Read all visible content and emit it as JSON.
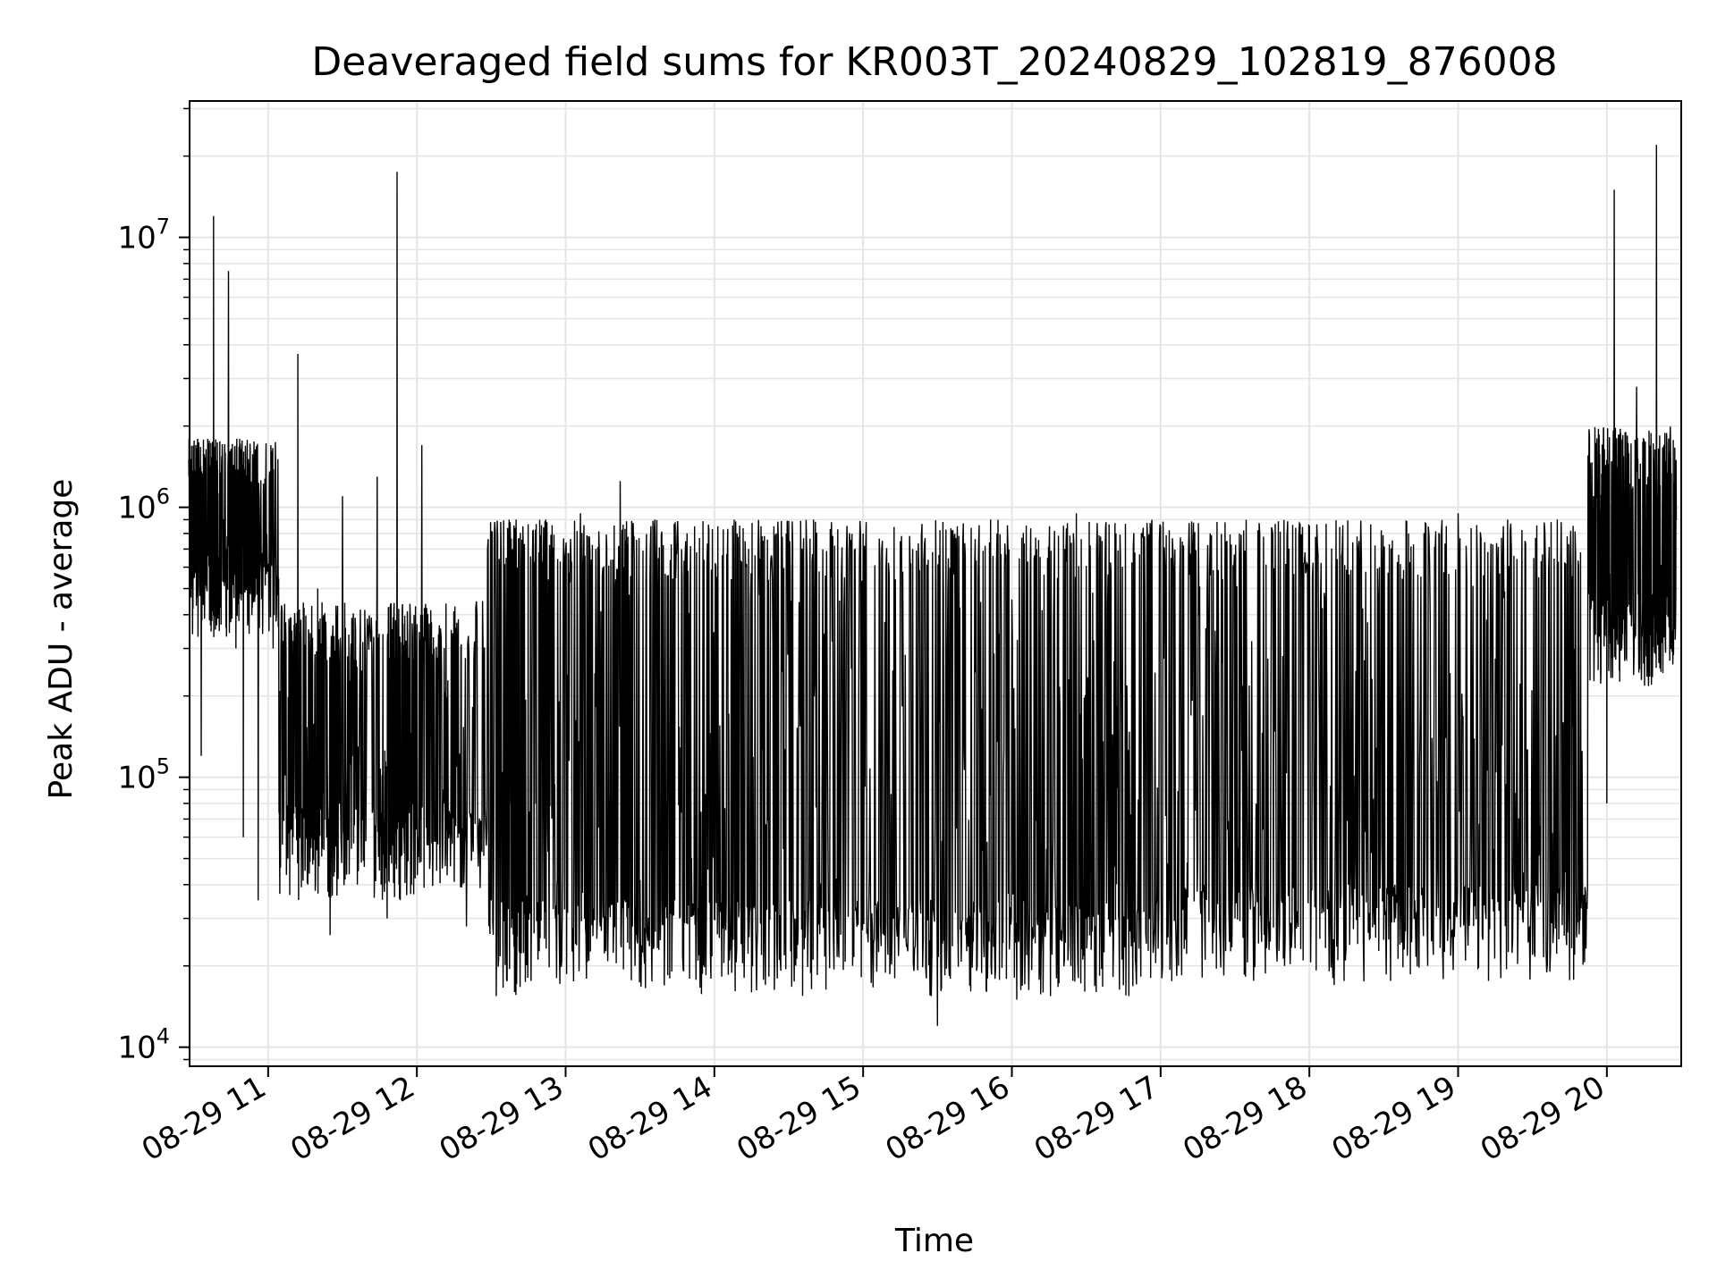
{
  "chart_data": {
    "type": "line",
    "title": "Deaveraged field sums for KR003T_20240829_102819_876008",
    "xlabel": "Time",
    "ylabel": "Peak ADU - average",
    "yscale": "log",
    "ylim": [
      8500,
      32000000
    ],
    "xlim": [
      "2024-08-29 10:28:19",
      "2024-08-29 20:30:00"
    ],
    "grid": true,
    "line_color": "#000000",
    "grid_color": "#e5e5e5",
    "x_ticks": [
      {
        "t": "2024-08-29 11:00",
        "label": "08-29 11"
      },
      {
        "t": "2024-08-29 12:00",
        "label": "08-29 12"
      },
      {
        "t": "2024-08-29 13:00",
        "label": "08-29 13"
      },
      {
        "t": "2024-08-29 14:00",
        "label": "08-29 14"
      },
      {
        "t": "2024-08-29 15:00",
        "label": "08-29 15"
      },
      {
        "t": "2024-08-29 16:00",
        "label": "08-29 16"
      },
      {
        "t": "2024-08-29 17:00",
        "label": "08-29 17"
      },
      {
        "t": "2024-08-29 18:00",
        "label": "08-29 18"
      },
      {
        "t": "2024-08-29 19:00",
        "label": "08-29 19"
      },
      {
        "t": "2024-08-29 20:00",
        "label": "08-29 20"
      }
    ],
    "y_ticks": [
      {
        "value": 10000,
        "base": "10",
        "exp": "4"
      },
      {
        "value": 100000,
        "base": "10",
        "exp": "5"
      },
      {
        "value": 1000000,
        "base": "10",
        "exp": "6"
      },
      {
        "value": 10000000,
        "base": "10",
        "exp": "7"
      }
    ],
    "series": [
      {
        "values": [
          [
            "2024-08-29 10:28",
            1500000
          ],
          [
            "2024-08-29 10:30",
            1000000
          ],
          [
            "2024-08-29 10:33",
            120000
          ],
          [
            "2024-08-29 10:36",
            1200000
          ],
          [
            "2024-08-29 10:38",
            12000000
          ],
          [
            "2024-08-29 10:40",
            400000
          ],
          [
            "2024-08-29 10:44",
            7500000
          ],
          [
            "2024-08-29 10:47",
            300000
          ],
          [
            "2024-08-29 10:50",
            60000
          ],
          [
            "2024-08-29 10:53",
            900000
          ],
          [
            "2024-08-29 10:56",
            35000
          ],
          [
            "2024-08-29 11:02",
            300000
          ],
          [
            "2024-08-29 11:08",
            50000
          ],
          [
            "2024-08-29 11:12",
            3700000
          ],
          [
            "2024-08-29 11:16",
            40000
          ],
          [
            "2024-08-29 11:20",
            500000
          ],
          [
            "2024-08-29 11:25",
            26000
          ],
          [
            "2024-08-29 11:30",
            1100000
          ],
          [
            "2024-08-29 11:36",
            40000
          ],
          [
            "2024-08-29 11:44",
            1300000
          ],
          [
            "2024-08-29 11:48",
            30000
          ],
          [
            "2024-08-29 11:52",
            17500000
          ],
          [
            "2024-08-29 11:56",
            50000
          ],
          [
            "2024-08-29 12:02",
            1700000
          ],
          [
            "2024-08-29 12:08",
            45000
          ],
          [
            "2024-08-29 12:14",
            300000
          ],
          [
            "2024-08-29 12:20",
            28000
          ],
          [
            "2024-08-29 12:30",
            35000
          ],
          [
            "2024-08-29 12:38",
            80000
          ],
          [
            "2024-08-29 12:40",
            900000
          ],
          [
            "2024-08-29 12:45",
            30000
          ],
          [
            "2024-08-29 12:52",
            900000
          ],
          [
            "2024-08-29 12:58",
            25000
          ],
          [
            "2024-08-29 13:06",
            950000
          ],
          [
            "2024-08-29 13:14",
            28000
          ],
          [
            "2024-08-29 13:22",
            1250000
          ],
          [
            "2024-08-29 13:28",
            20000
          ],
          [
            "2024-08-29 13:36",
            900000
          ],
          [
            "2024-08-29 13:44",
            35000
          ],
          [
            "2024-08-29 13:52",
            850000
          ],
          [
            "2024-08-29 14:00",
            30000
          ],
          [
            "2024-08-29 14:08",
            900000
          ],
          [
            "2024-08-29 14:16",
            33000
          ],
          [
            "2024-08-29 14:24",
            850000
          ],
          [
            "2024-08-29 14:32",
            30000
          ],
          [
            "2024-08-29 14:40",
            900000
          ],
          [
            "2024-08-29 14:50",
            25000
          ],
          [
            "2024-08-29 15:00",
            800000
          ],
          [
            "2024-08-29 15:10",
            22000
          ],
          [
            "2024-08-29 15:20",
            700000
          ],
          [
            "2024-08-29 15:30",
            12000
          ],
          [
            "2024-08-29 15:38",
            850000
          ],
          [
            "2024-08-29 15:46",
            20000
          ],
          [
            "2024-08-29 15:54",
            800000
          ],
          [
            "2024-08-29 16:02",
            15000
          ],
          [
            "2024-08-29 16:10",
            700000
          ],
          [
            "2024-08-29 16:18",
            18000
          ],
          [
            "2024-08-29 16:26",
            950000
          ],
          [
            "2024-08-29 16:34",
            16000
          ],
          [
            "2024-08-29 16:42",
            800000
          ],
          [
            "2024-08-29 16:50",
            20000
          ],
          [
            "2024-08-29 17:00",
            850000
          ],
          [
            "2024-08-29 17:10",
            25000
          ],
          [
            "2024-08-29 17:20",
            800000
          ],
          [
            "2024-08-29 17:30",
            30000
          ],
          [
            "2024-08-29 17:40",
            800000
          ],
          [
            "2024-08-29 17:50",
            20000
          ],
          [
            "2024-08-29 18:00",
            850000
          ],
          [
            "2024-08-29 18:10",
            17000
          ],
          [
            "2024-08-29 18:20",
            750000
          ],
          [
            "2024-08-29 18:30",
            25000
          ],
          [
            "2024-08-29 18:40",
            800000
          ],
          [
            "2024-08-29 18:50",
            22000
          ],
          [
            "2024-08-29 19:00",
            950000
          ],
          [
            "2024-08-29 19:10",
            25000
          ],
          [
            "2024-08-29 19:20",
            900000
          ],
          [
            "2024-08-29 19:30",
            22000
          ],
          [
            "2024-08-29 19:40",
            900000
          ],
          [
            "2024-08-29 19:48",
            30000
          ],
          [
            "2024-08-29 19:56",
            1800000
          ],
          [
            "2024-08-29 20:00",
            80000
          ],
          [
            "2024-08-29 20:03",
            15000000
          ],
          [
            "2024-08-29 20:06",
            300000
          ],
          [
            "2024-08-29 20:12",
            2800000
          ],
          [
            "2024-08-29 20:16",
            600000
          ],
          [
            "2024-08-29 20:20",
            22000000
          ],
          [
            "2024-08-29 20:24",
            1400000
          ],
          [
            "2024-08-29 20:28",
            900000
          ]
        ]
      }
    ]
  }
}
